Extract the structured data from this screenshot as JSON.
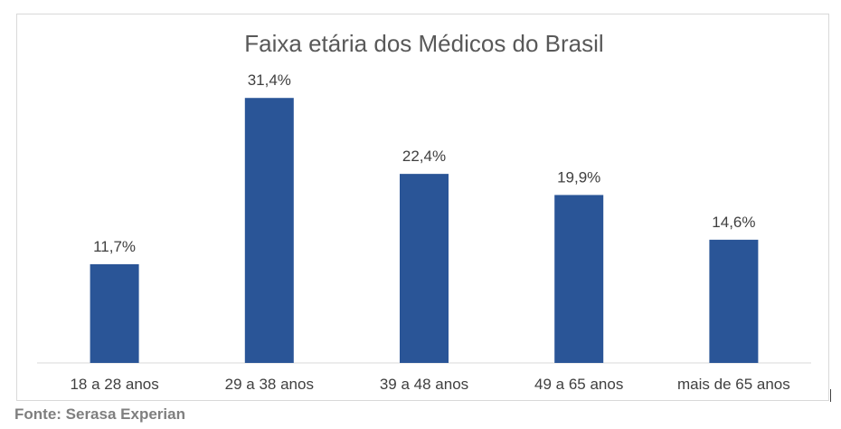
{
  "chart_data": {
    "type": "bar",
    "title": "Faixa etária dos Médicos do Brasil",
    "categories": [
      "18 a 28 anos",
      "29 a 38 anos",
      "39 a 48 anos",
      "49 a 65 anos",
      "mais de 65 anos"
    ],
    "values": [
      11.7,
      31.4,
      22.4,
      19.9,
      14.6
    ],
    "data_labels": [
      "11,7%",
      "31,4%",
      "22,4%",
      "19,9%",
      "14,6%"
    ],
    "ylim": [
      0,
      37
    ],
    "grid": false,
    "legend": "none",
    "bar_color": "#2a5597"
  },
  "source": "Fonte: Serasa Experian"
}
